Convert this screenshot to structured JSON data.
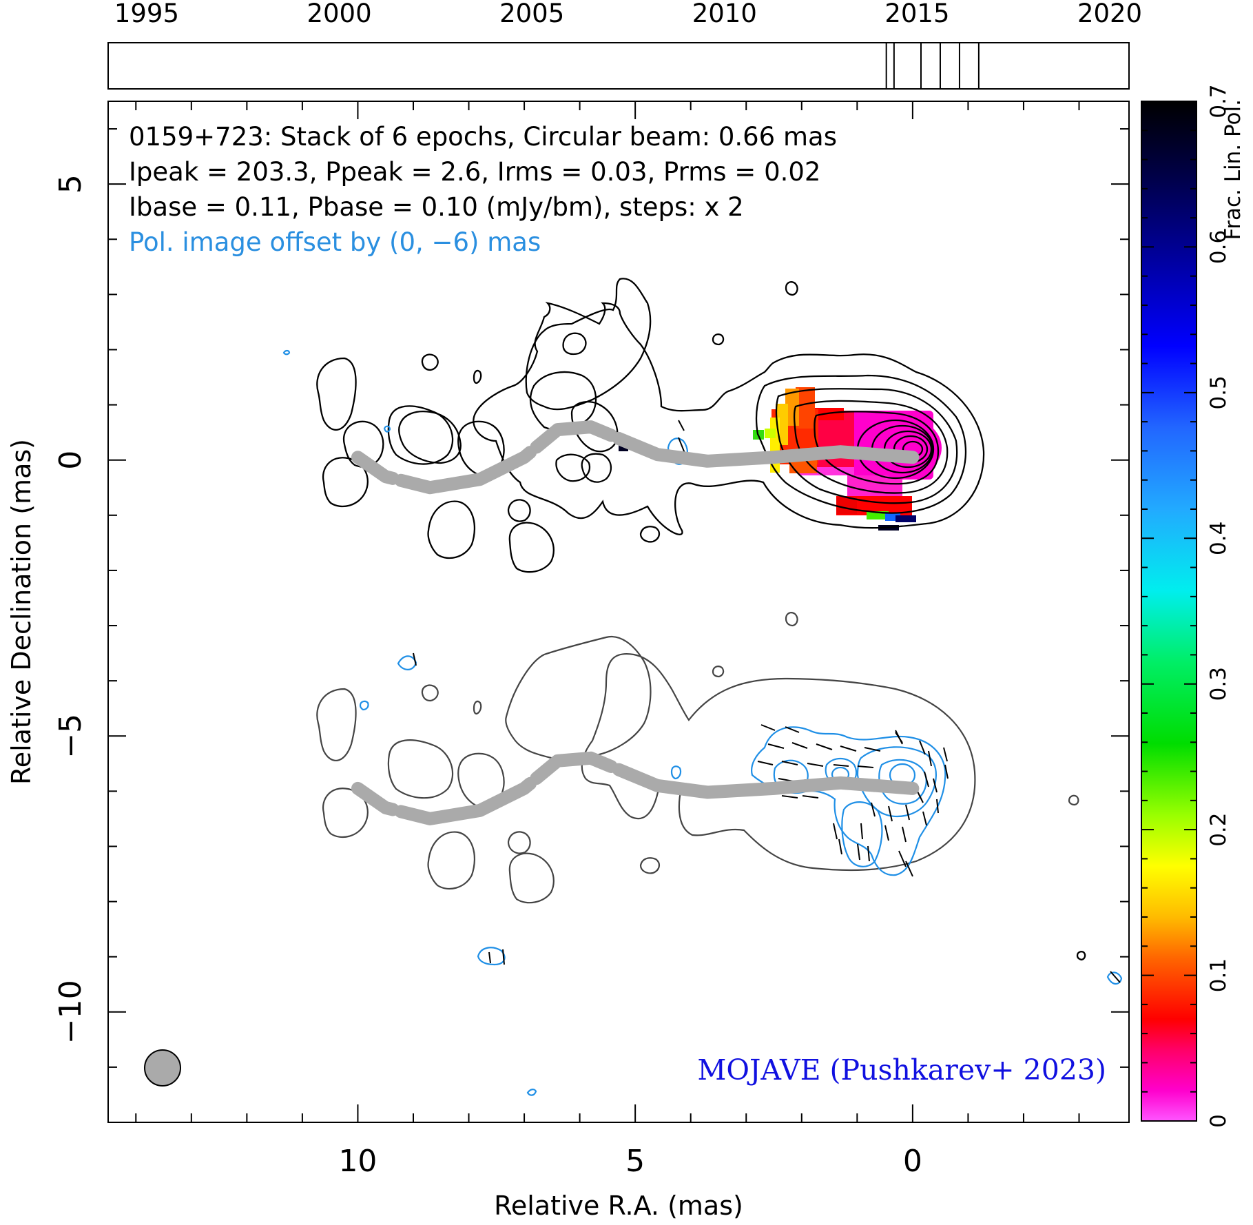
{
  "chart_data": {
    "type": "contour",
    "timeline": {
      "years": [
        1995,
        2000,
        2005,
        2010,
        2015,
        2020
      ],
      "range": [
        1994,
        2020.5
      ],
      "epochs": [
        2014.2,
        2014.4,
        2015.1,
        2015.6,
        2016.1,
        2016.6
      ]
    },
    "annotation": {
      "line1": "0159+723: Stack of 6 epochs, Circular beam: 0.66 mas",
      "line2": "Ipeak = 203.3, Ppeak = 2.6, Irms = 0.03, Prms = 0.02",
      "line3": "Ibase = 0.11, Pbase = 0.10 (mJy/bm), steps: x 2",
      "line4": "Pol. image offset by (0, −6) mas"
    },
    "credit": "MOJAVE (Pushkarev+ 2023)",
    "xlabel": "Relative R.A. (mas)",
    "ylabel": "Relative Declination (mas)",
    "xlim": [
      14.5,
      -3.9
    ],
    "ylim": [
      -12,
      6.5
    ],
    "x_ticks": [
      10,
      5,
      0
    ],
    "x_tick_labels": [
      "10",
      "5",
      "0"
    ],
    "y_ticks": [
      5,
      0,
      -5,
      -10
    ],
    "y_tick_labels": [
      "5",
      "0",
      "−5",
      "−10"
    ],
    "beam_diameter_mas": 0.66,
    "colorbar": {
      "label": "Frac. Lin. Pol.",
      "range": [
        0,
        0.7
      ],
      "ticks": [
        0,
        0.1,
        0.2,
        0.3,
        0.4,
        0.5,
        0.6,
        0.7
      ],
      "tick_labels": [
        "0",
        "0.1",
        "0.2",
        "0.3",
        "0.4",
        "0.5",
        "0.6",
        "0.7"
      ]
    },
    "jet_ridge_mas": [
      [
        10,
        0.05
      ],
      [
        9.5,
        -0.3
      ],
      [
        8.7,
        -0.5
      ],
      [
        7.8,
        -0.35
      ],
      [
        7,
        0.05
      ],
      [
        6.4,
        0.55
      ],
      [
        5.8,
        0.6
      ],
      [
        5.2,
        0.35
      ],
      [
        4.6,
        0.1
      ],
      [
        3.7,
        -0.02
      ],
      [
        2.5,
        0.05
      ],
      [
        1.3,
        0.15
      ],
      [
        0,
        0.05
      ]
    ],
    "peak_position_mas": [
      0,
      0
    ],
    "colors": {
      "total_intensity_contour": "#000000",
      "polarized_contour": "#1f8fe6",
      "offset_total_intensity_contour": "#444444",
      "jet_ridge": "#aaaaaa",
      "pol_annotation": "#2a8fe0",
      "credit": "#1010e0"
    }
  }
}
